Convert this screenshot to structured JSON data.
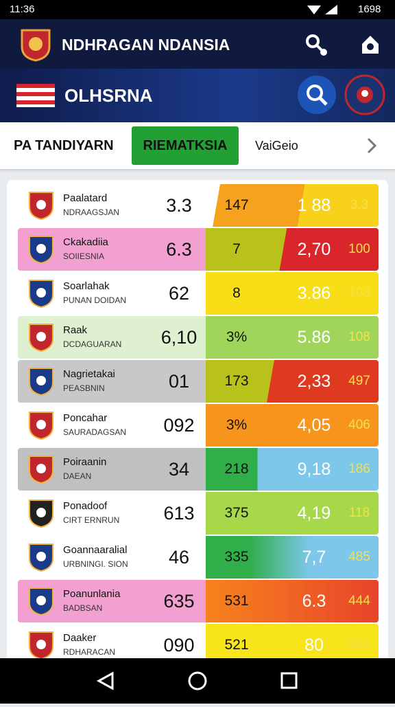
{
  "status_bar": {
    "time": "11:36",
    "battery": "1698"
  },
  "header": {
    "title": "NDHRAGAN NDANSIA"
  },
  "subheader": {
    "title": "OLHSRNA"
  },
  "tabs": [
    "PA TANDIYARN",
    "RIEMATKSIA",
    "VaiGeio"
  ],
  "table": {
    "rows": [
      [
        "Paalatard",
        "NDRAAGSJAN",
        "3.3",
        "147",
        "1 88",
        "3.3"
      ],
      [
        "Ckakadiia",
        "SOIIESNIA",
        "6.3",
        "7",
        "2,70",
        "100"
      ],
      [
        "Soarlahak",
        "PUNAN DOIDAN",
        "62",
        "8",
        "3.86",
        "103"
      ],
      [
        "Raak",
        "DCDAGUARAN",
        "6,10",
        "3%",
        "5.86",
        "108"
      ],
      [
        "Nagrietakai",
        "PEASBNIN",
        "01",
        "173",
        "2,33",
        "497"
      ],
      [
        "Poncahar",
        "SAURADAGSAN",
        "092",
        "3%",
        "4,05",
        "406"
      ],
      [
        "Poiraanin",
        "DAEAN",
        "34",
        "218",
        "9,18",
        "186"
      ],
      [
        "Ponadoof",
        "CIRT ERNRUN",
        "613",
        "375",
        "4,19",
        "118"
      ],
      [
        "Goannaaralial",
        "URBNINGI. SION",
        "46",
        "335",
        "7,7",
        "485"
      ],
      [
        "Poanunlania",
        "BADBSAN",
        "635",
        "531",
        "6.3",
        "444"
      ],
      [
        "Daaker",
        "RDHARACAN",
        "090",
        "521",
        "80",
        "485"
      ]
    ]
  }
}
